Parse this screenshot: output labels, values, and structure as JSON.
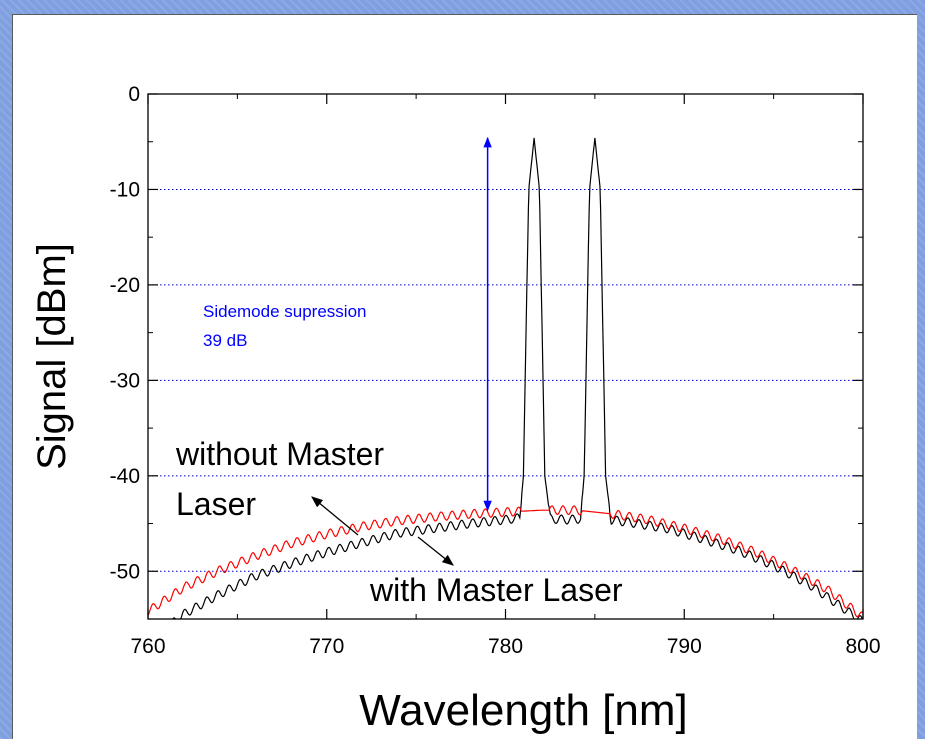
{
  "chart_data": {
    "type": "line",
    "xlabel": "Wavelength [nm]",
    "ylabel": "Signal [dBm]",
    "xlim": [
      760,
      800
    ],
    "ylim": [
      -55,
      0
    ],
    "xticks": [
      760,
      770,
      780,
      790,
      800
    ],
    "yticks": [
      0,
      -10,
      -20,
      -30,
      -40,
      -50
    ],
    "grid": "horizontal dotted",
    "series": [
      {
        "color": "#000000",
        "points": [
          [
            760.0,
            -57.5
          ],
          [
            762,
            -54.5
          ],
          [
            764,
            -52.4
          ],
          [
            766,
            -50.5
          ],
          [
            768,
            -49.2
          ],
          [
            770,
            -48.0
          ],
          [
            772,
            -47.0
          ],
          [
            774,
            -46.0
          ],
          [
            776,
            -45.5
          ],
          [
            778,
            -45.0
          ],
          [
            780,
            -44.6
          ],
          [
            780.8,
            -44.4
          ],
          [
            781.0,
            -40.0
          ],
          [
            781.3,
            -10.0
          ],
          [
            781.6,
            -4.6
          ],
          [
            781.9,
            -10.0
          ],
          [
            782.2,
            -40.0
          ],
          [
            782.5,
            -44.5
          ],
          [
            783.5,
            -44.6
          ],
          [
            784.2,
            -44.5
          ],
          [
            784.4,
            -40.0
          ],
          [
            784.7,
            -10.0
          ],
          [
            785.0,
            -4.6
          ],
          [
            785.3,
            -10.0
          ],
          [
            785.6,
            -40.0
          ],
          [
            785.9,
            -44.6
          ],
          [
            787,
            -44.9
          ],
          [
            789,
            -45.5
          ],
          [
            791,
            -46.6
          ],
          [
            793,
            -47.8
          ],
          [
            795,
            -49.4
          ],
          [
            797,
            -51.4
          ],
          [
            799,
            -54.0
          ],
          [
            800,
            -55.3
          ]
        ],
        "label": "with Master Laser"
      },
      {
        "color": "#ff0000",
        "points": [
          [
            760.0,
            -54.2
          ],
          [
            762,
            -51.7
          ],
          [
            764,
            -49.9
          ],
          [
            766,
            -48.4
          ],
          [
            768,
            -47.1
          ],
          [
            770,
            -46.1
          ],
          [
            772,
            -45.3
          ],
          [
            774,
            -44.7
          ],
          [
            776,
            -44.3
          ],
          [
            778,
            -44.0
          ],
          [
            780,
            -43.8
          ],
          [
            782,
            -43.6
          ],
          [
            784,
            -43.6
          ],
          [
            786,
            -44.0
          ],
          [
            788,
            -44.6
          ],
          [
            790,
            -45.5
          ],
          [
            792,
            -46.6
          ],
          [
            794,
            -48.0
          ],
          [
            796,
            -49.8
          ],
          [
            798,
            -51.9
          ],
          [
            800,
            -54.8
          ]
        ],
        "label": "without Master Laser"
      }
    ],
    "annotations": {
      "sidemode_line1": "Sidemode supression",
      "sidemode_line2": "39 dB",
      "without_line1": "without Master",
      "without_line2": "Laser",
      "with_label": "with Master Laser"
    },
    "arrow": {
      "x": 779,
      "y_top": -4.6,
      "y_bottom": -43.6
    },
    "colors": {
      "axis": "#000000",
      "grid": "#0000cc",
      "annotation": "#0000ff"
    }
  }
}
